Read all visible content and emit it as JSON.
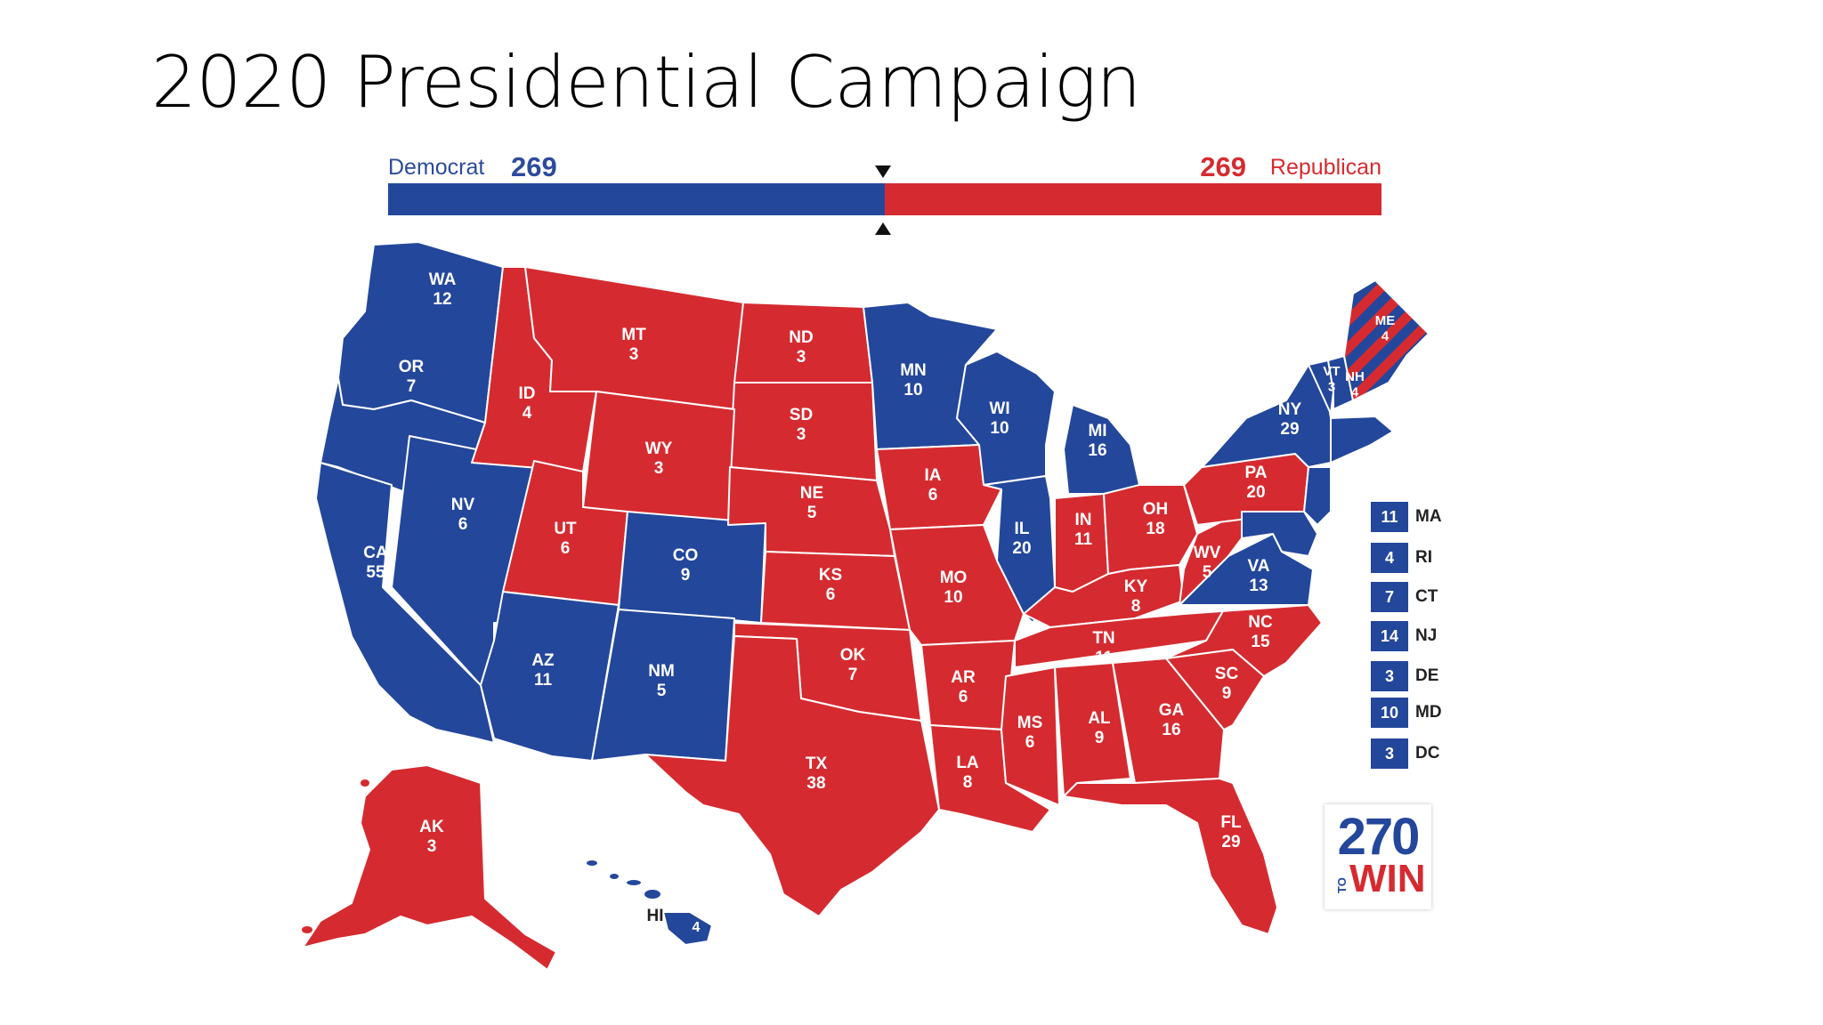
{
  "slide": {
    "title": "2020 Presidential Campaign"
  },
  "tally": {
    "dem_label": "Democrat",
    "dem_total": "269",
    "rep_label": "Republican",
    "rep_total": "269",
    "dem_share": 0.5
  },
  "colors": {
    "democrat": "#23479b",
    "republican": "#d52b30",
    "background": "#ffffff"
  },
  "states": {
    "WA": {
      "abbr": "WA",
      "ev": "12",
      "party": "D"
    },
    "OR": {
      "abbr": "OR",
      "ev": "7",
      "party": "D"
    },
    "CA": {
      "abbr": "CA",
      "ev": "55",
      "party": "D"
    },
    "NV": {
      "abbr": "NV",
      "ev": "6",
      "party": "D"
    },
    "ID": {
      "abbr": "ID",
      "ev": "4",
      "party": "R"
    },
    "MT": {
      "abbr": "MT",
      "ev": "3",
      "party": "R"
    },
    "WY": {
      "abbr": "WY",
      "ev": "3",
      "party": "R"
    },
    "UT": {
      "abbr": "UT",
      "ev": "6",
      "party": "R"
    },
    "CO": {
      "abbr": "CO",
      "ev": "9",
      "party": "D"
    },
    "AZ": {
      "abbr": "AZ",
      "ev": "11",
      "party": "D"
    },
    "NM": {
      "abbr": "NM",
      "ev": "5",
      "party": "D"
    },
    "ND": {
      "abbr": "ND",
      "ev": "3",
      "party": "R"
    },
    "SD": {
      "abbr": "SD",
      "ev": "3",
      "party": "R"
    },
    "NE": {
      "abbr": "NE",
      "ev": "5",
      "party": "R"
    },
    "KS": {
      "abbr": "KS",
      "ev": "6",
      "party": "R"
    },
    "OK": {
      "abbr": "OK",
      "ev": "7",
      "party": "R"
    },
    "TX": {
      "abbr": "TX",
      "ev": "38",
      "party": "R"
    },
    "MN": {
      "abbr": "MN",
      "ev": "10",
      "party": "D"
    },
    "IA": {
      "abbr": "IA",
      "ev": "6",
      "party": "R"
    },
    "MO": {
      "abbr": "MO",
      "ev": "10",
      "party": "R"
    },
    "AR": {
      "abbr": "AR",
      "ev": "6",
      "party": "R"
    },
    "LA": {
      "abbr": "LA",
      "ev": "8",
      "party": "R"
    },
    "WI": {
      "abbr": "WI",
      "ev": "10",
      "party": "D"
    },
    "IL": {
      "abbr": "IL",
      "ev": "20",
      "party": "D"
    },
    "MI": {
      "abbr": "MI",
      "ev": "16",
      "party": "D"
    },
    "IN": {
      "abbr": "IN",
      "ev": "11",
      "party": "R"
    },
    "OH": {
      "abbr": "OH",
      "ev": "18",
      "party": "R"
    },
    "KY": {
      "abbr": "KY",
      "ev": "8",
      "party": "R"
    },
    "TN": {
      "abbr": "TN",
      "ev": "11",
      "party": "R"
    },
    "MS": {
      "abbr": "MS",
      "ev": "6",
      "party": "R"
    },
    "AL": {
      "abbr": "AL",
      "ev": "9",
      "party": "R"
    },
    "GA": {
      "abbr": "GA",
      "ev": "16",
      "party": "R"
    },
    "FL": {
      "abbr": "FL",
      "ev": "29",
      "party": "R"
    },
    "SC": {
      "abbr": "SC",
      "ev": "9",
      "party": "R"
    },
    "NC": {
      "abbr": "NC",
      "ev": "15",
      "party": "R"
    },
    "VA": {
      "abbr": "VA",
      "ev": "13",
      "party": "D"
    },
    "WV": {
      "abbr": "WV",
      "ev": "5",
      "party": "R"
    },
    "PA": {
      "abbr": "PA",
      "ev": "20",
      "party": "R"
    },
    "NY": {
      "abbr": "NY",
      "ev": "29",
      "party": "D"
    },
    "VT": {
      "abbr": "VT",
      "ev": "3",
      "party": "D"
    },
    "NH": {
      "abbr": "NH",
      "ev": "4",
      "party": "D"
    },
    "ME": {
      "abbr": "ME",
      "ev": "4",
      "party": "split"
    },
    "AK": {
      "abbr": "AK",
      "ev": "3",
      "party": "R"
    },
    "HI": {
      "abbr": "HI",
      "ev": "4",
      "party": "D"
    }
  },
  "legend": [
    {
      "ev": "11",
      "abbr": "MA"
    },
    {
      "ev": "4",
      "abbr": "RI"
    },
    {
      "ev": "7",
      "abbr": "CT"
    },
    {
      "ev": "14",
      "abbr": "NJ"
    },
    {
      "ev": "3",
      "abbr": "DE"
    },
    {
      "ev": "10",
      "abbr": "MD"
    },
    {
      "ev": "3",
      "abbr": "DC"
    }
  ],
  "logo": {
    "number": "270",
    "to": "TO",
    "win": "WIN"
  }
}
